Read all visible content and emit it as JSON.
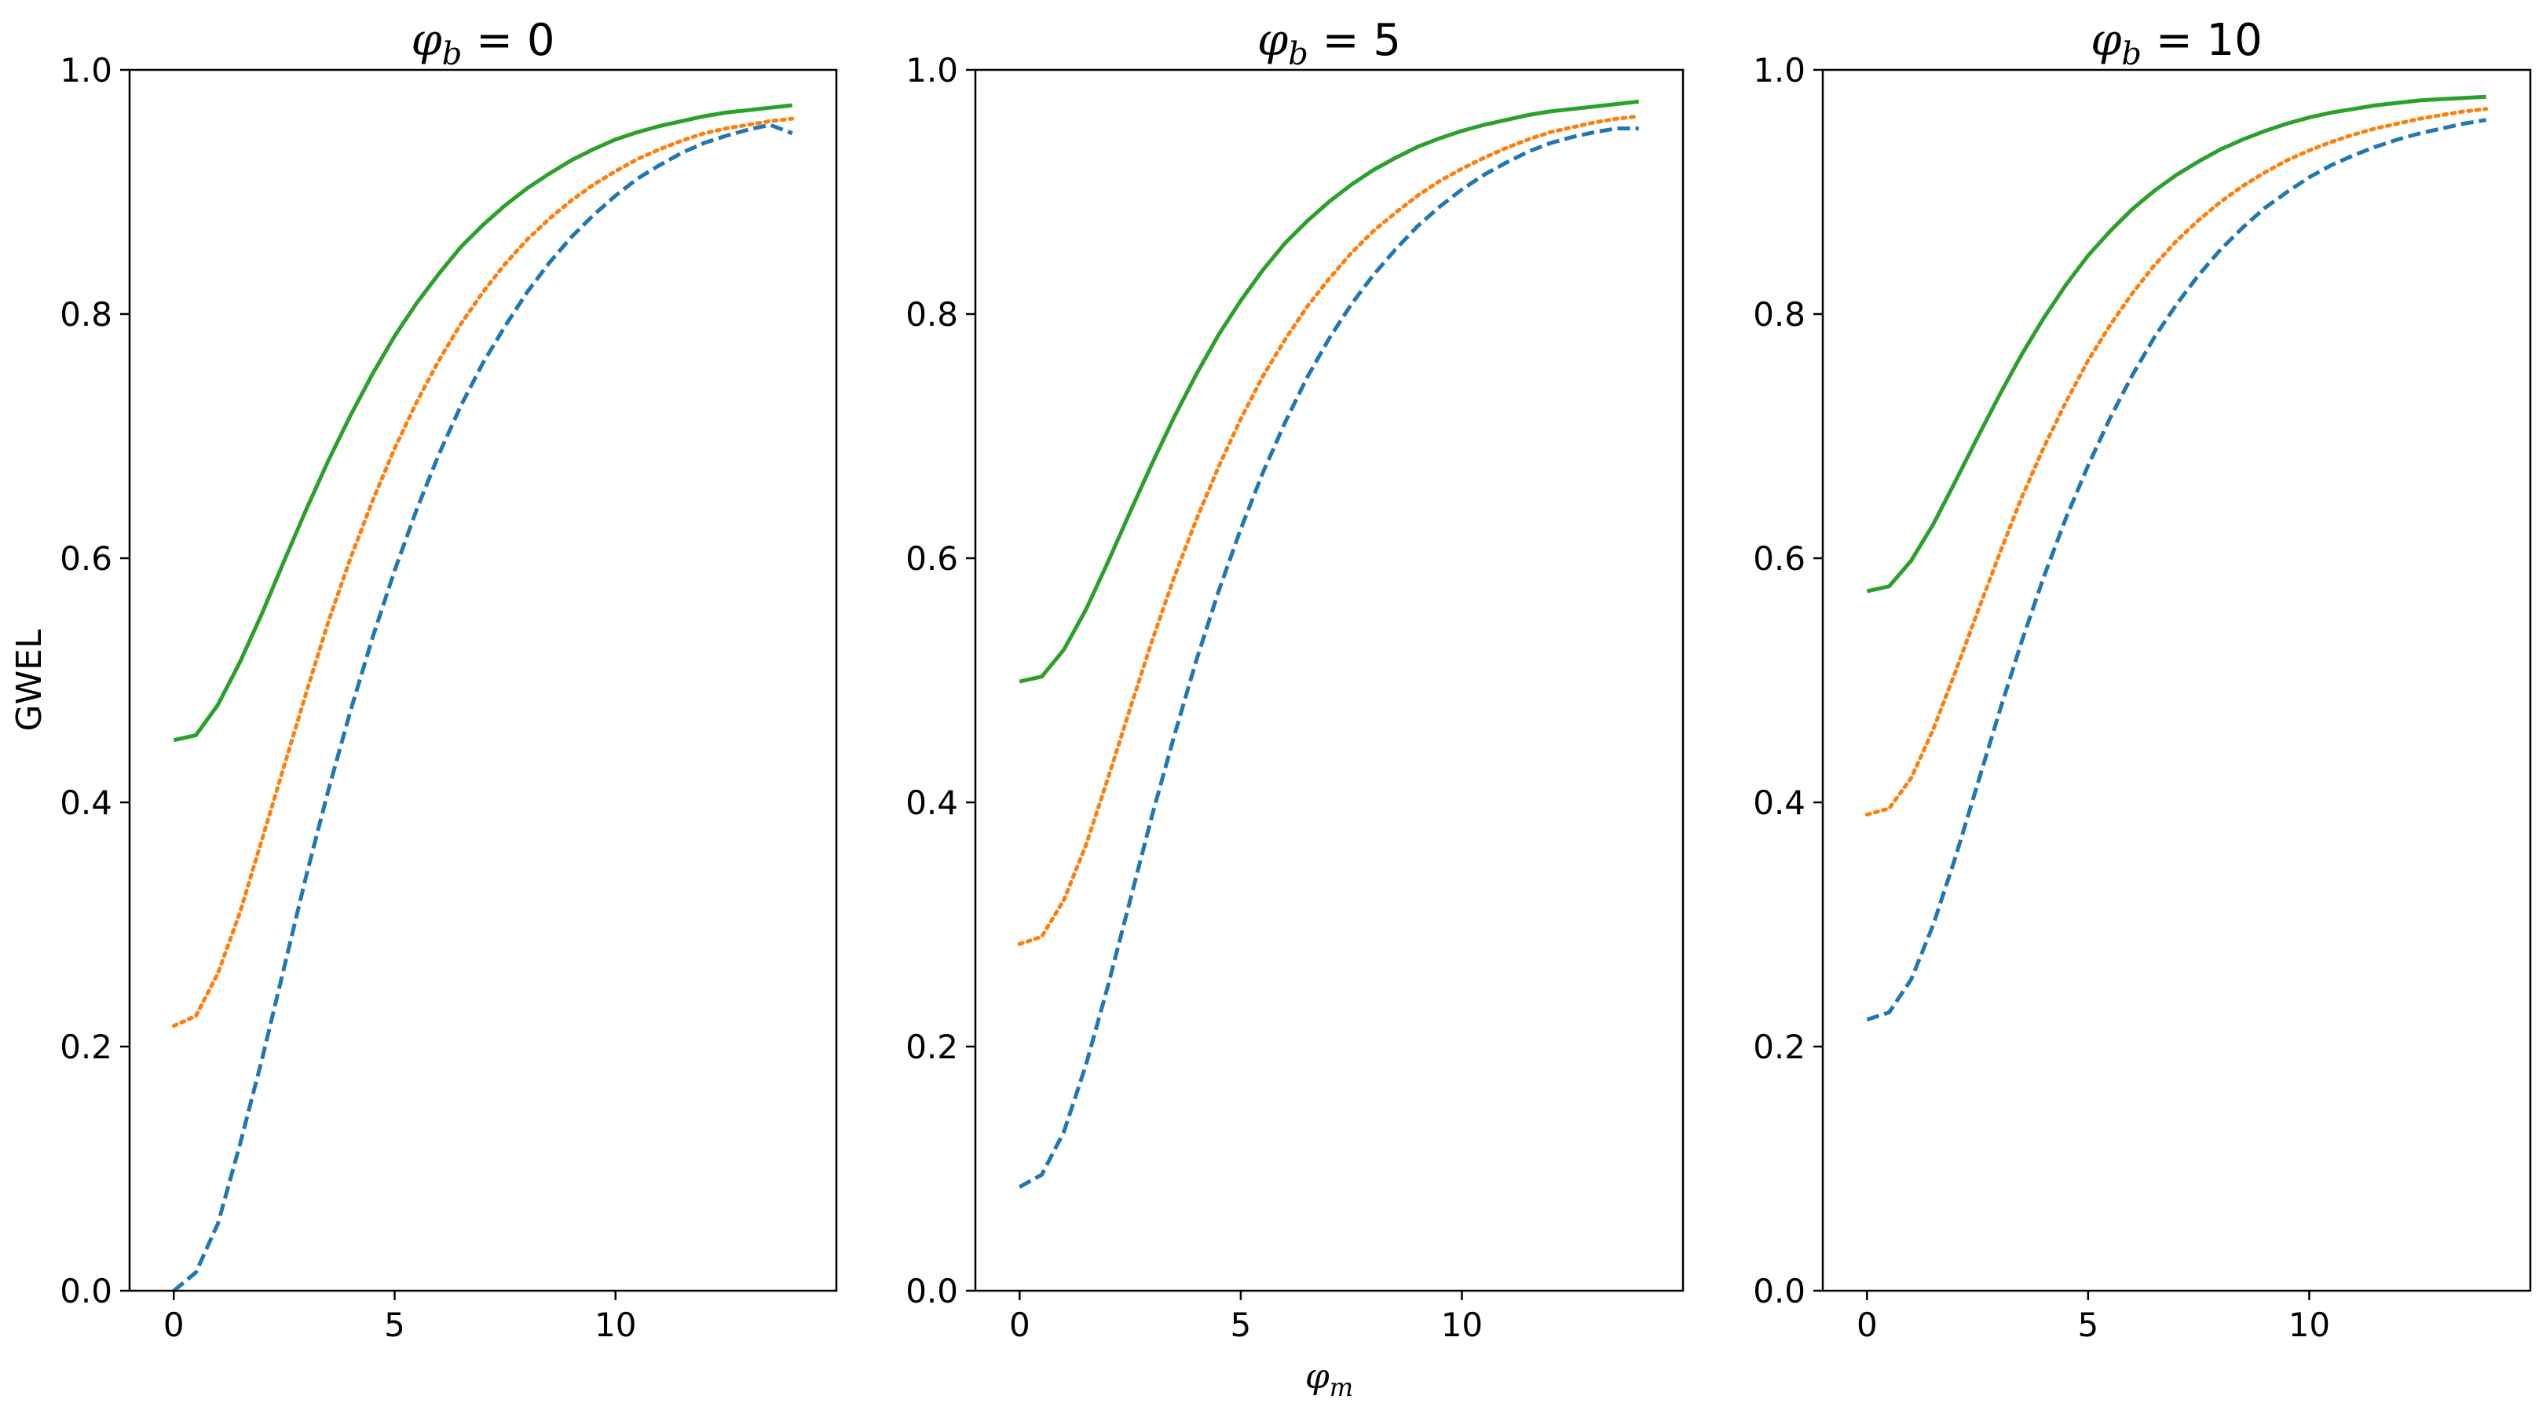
{
  "chart_data": [
    {
      "type": "line",
      "title": {
        "symbol": "φ",
        "subscript": "b",
        "rest": " = 0"
      },
      "xlabel": "",
      "ylabel": "GWEL",
      "xlim": [
        -1,
        15
      ],
      "ylim": [
        0.0,
        1.0
      ],
      "xticks": [
        0,
        5,
        10
      ],
      "xtick_labels": [
        "0",
        "5",
        "10"
      ],
      "yticks": [
        0.0,
        0.2,
        0.4,
        0.6,
        0.8,
        1.0
      ],
      "ytick_labels": [
        "0.0",
        "0.2",
        "0.4",
        "0.6",
        "0.8",
        "1.0"
      ],
      "grid": false,
      "x": [
        0,
        0.5,
        1,
        1.5,
        2,
        2.5,
        3,
        3.5,
        4,
        4.5,
        5,
        5.5,
        6,
        6.5,
        7,
        7.5,
        8,
        8.5,
        9,
        9.5,
        10,
        10.5,
        11,
        11.5,
        12,
        12.5,
        13,
        13.5,
        14
      ],
      "series": [
        {
          "color": "#1f77b4",
          "dash": "dashed",
          "values": [
            0.0,
            0.015,
            0.055,
            0.12,
            0.19,
            0.265,
            0.34,
            0.41,
            0.475,
            0.535,
            0.59,
            0.64,
            0.685,
            0.725,
            0.76,
            0.79,
            0.818,
            0.842,
            0.863,
            0.881,
            0.897,
            0.911,
            0.922,
            0.932,
            0.94,
            0.946,
            0.951,
            0.955,
            0.948
          ]
        },
        {
          "color": "#ff7f0e",
          "dash": "dotted",
          "values": [
            0.217,
            0.225,
            0.26,
            0.31,
            0.37,
            0.43,
            0.49,
            0.548,
            0.6,
            0.647,
            0.69,
            0.728,
            0.762,
            0.792,
            0.818,
            0.841,
            0.861,
            0.878,
            0.893,
            0.906,
            0.917,
            0.927,
            0.935,
            0.942,
            0.948,
            0.952,
            0.955,
            0.958,
            0.96
          ]
        },
        {
          "color": "#2ca02c",
          "dash": "solid",
          "values": [
            0.451,
            0.455,
            0.48,
            0.515,
            0.555,
            0.598,
            0.64,
            0.68,
            0.717,
            0.751,
            0.782,
            0.809,
            0.833,
            0.855,
            0.873,
            0.889,
            0.903,
            0.915,
            0.926,
            0.935,
            0.943,
            0.949,
            0.954,
            0.958,
            0.962,
            0.965,
            0.967,
            0.969,
            0.971
          ]
        }
      ]
    },
    {
      "type": "line",
      "title": {
        "symbol": "φ",
        "subscript": "b",
        "rest": " = 5"
      },
      "xlabel": "φm",
      "ylabel": "",
      "xlim": [
        -1,
        15
      ],
      "ylim": [
        0.0,
        1.0
      ],
      "xticks": [
        0,
        5,
        10
      ],
      "xtick_labels": [
        "0",
        "5",
        "10"
      ],
      "yticks": [
        0.0,
        0.2,
        0.4,
        0.6,
        0.8,
        1.0
      ],
      "ytick_labels": [
        "0.0",
        "0.2",
        "0.4",
        "0.6",
        "0.8",
        "1.0"
      ],
      "grid": false,
      "x": [
        0,
        0.5,
        1,
        1.5,
        2,
        2.5,
        3,
        3.5,
        4,
        4.5,
        5,
        5.5,
        6,
        6.5,
        7,
        7.5,
        8,
        8.5,
        9,
        9.5,
        10,
        10.5,
        11,
        11.5,
        12,
        12.5,
        13,
        13.5,
        14
      ],
      "series": [
        {
          "color": "#1f77b4",
          "dash": "dashed",
          "values": [
            0.085,
            0.095,
            0.13,
            0.185,
            0.25,
            0.32,
            0.39,
            0.455,
            0.517,
            0.573,
            0.624,
            0.67,
            0.711,
            0.748,
            0.78,
            0.808,
            0.832,
            0.853,
            0.872,
            0.888,
            0.902,
            0.914,
            0.924,
            0.933,
            0.94,
            0.945,
            0.949,
            0.952,
            0.952
          ]
        },
        {
          "color": "#ff7f0e",
          "dash": "dotted",
          "values": [
            0.284,
            0.29,
            0.32,
            0.365,
            0.42,
            0.477,
            0.533,
            0.585,
            0.632,
            0.675,
            0.714,
            0.749,
            0.779,
            0.806,
            0.829,
            0.85,
            0.868,
            0.883,
            0.897,
            0.909,
            0.919,
            0.928,
            0.936,
            0.943,
            0.949,
            0.953,
            0.957,
            0.96,
            0.962
          ]
        },
        {
          "color": "#2ca02c",
          "dash": "solid",
          "values": [
            0.499,
            0.503,
            0.525,
            0.558,
            0.597,
            0.638,
            0.678,
            0.716,
            0.751,
            0.783,
            0.811,
            0.836,
            0.858,
            0.876,
            0.892,
            0.906,
            0.918,
            0.928,
            0.937,
            0.944,
            0.95,
            0.955,
            0.959,
            0.963,
            0.966,
            0.968,
            0.97,
            0.972,
            0.974
          ]
        }
      ]
    },
    {
      "type": "line",
      "title": {
        "symbol": "φ",
        "subscript": "b",
        "rest": " = 10"
      },
      "xlabel": "",
      "ylabel": "",
      "xlim": [
        -1,
        15
      ],
      "ylim": [
        0.0,
        1.0
      ],
      "xticks": [
        0,
        5,
        10
      ],
      "xtick_labels": [
        "0",
        "5",
        "10"
      ],
      "yticks": [
        0.0,
        0.2,
        0.4,
        0.6,
        0.8,
        1.0
      ],
      "ytick_labels": [
        "0.0",
        "0.2",
        "0.4",
        "0.6",
        "0.8",
        "1.0"
      ],
      "grid": false,
      "x": [
        0,
        0.5,
        1,
        1.5,
        2,
        2.5,
        3,
        3.5,
        4,
        4.5,
        5,
        5.5,
        6,
        6.5,
        7,
        7.5,
        8,
        8.5,
        9,
        9.5,
        10,
        10.5,
        11,
        11.5,
        12,
        12.5,
        13,
        13.5,
        14
      ],
      "series": [
        {
          "color": "#1f77b4",
          "dash": "dashed",
          "values": [
            0.222,
            0.228,
            0.255,
            0.3,
            0.355,
            0.415,
            0.475,
            0.532,
            0.585,
            0.633,
            0.676,
            0.715,
            0.75,
            0.781,
            0.808,
            0.832,
            0.853,
            0.871,
            0.887,
            0.9,
            0.912,
            0.922,
            0.93,
            0.937,
            0.943,
            0.948,
            0.952,
            0.956,
            0.959
          ]
        },
        {
          "color": "#ff7f0e",
          "dash": "dotted",
          "values": [
            0.39,
            0.395,
            0.42,
            0.46,
            0.507,
            0.556,
            0.604,
            0.65,
            0.691,
            0.728,
            0.762,
            0.791,
            0.817,
            0.84,
            0.86,
            0.877,
            0.892,
            0.905,
            0.916,
            0.926,
            0.934,
            0.941,
            0.947,
            0.952,
            0.956,
            0.96,
            0.963,
            0.966,
            0.968
          ]
        },
        {
          "color": "#2ca02c",
          "dash": "solid",
          "values": [
            0.573,
            0.577,
            0.598,
            0.628,
            0.663,
            0.699,
            0.734,
            0.767,
            0.797,
            0.824,
            0.848,
            0.868,
            0.886,
            0.901,
            0.914,
            0.925,
            0.935,
            0.943,
            0.95,
            0.956,
            0.961,
            0.965,
            0.968,
            0.971,
            0.973,
            0.975,
            0.976,
            0.977,
            0.978
          ]
        }
      ]
    }
  ]
}
